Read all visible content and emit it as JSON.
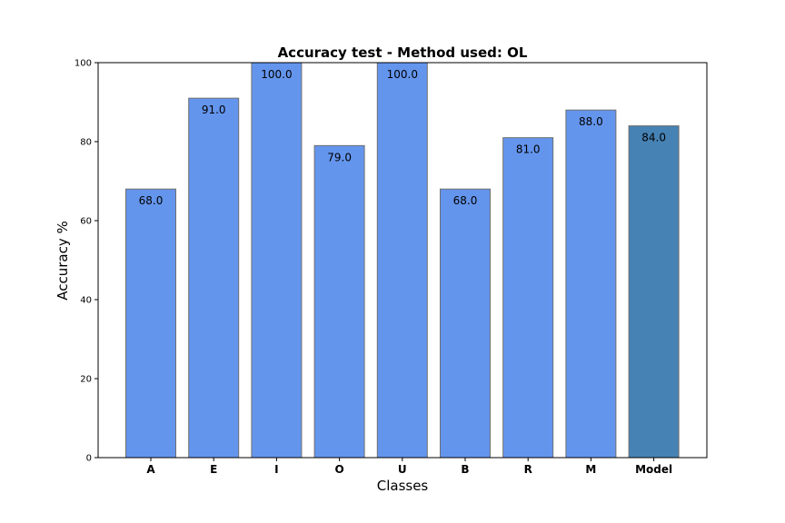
{
  "chart_data": {
    "type": "bar",
    "title": "Accuracy test - Method used: OL",
    "xlabel": "Classes",
    "ylabel": "Accuracy %",
    "categories": [
      "A",
      "E",
      "I",
      "O",
      "U",
      "B",
      "R",
      "M",
      "Model"
    ],
    "values": [
      68.0,
      91.0,
      100.0,
      79.0,
      100.0,
      68.0,
      81.0,
      88.0,
      84.0
    ],
    "data_labels": [
      "68.0",
      "91.0",
      "100.0",
      "79.0",
      "100.0",
      "68.0",
      "81.0",
      "88.0",
      "84.0"
    ],
    "ylim": [
      0,
      100
    ],
    "yticks": [
      0,
      20,
      40,
      60,
      80,
      100
    ],
    "grid": false,
    "colors": {
      "class_bar": "#6495ED",
      "model_bar": "#4682B4",
      "bar_edge": "#6e6e6e"
    }
  }
}
